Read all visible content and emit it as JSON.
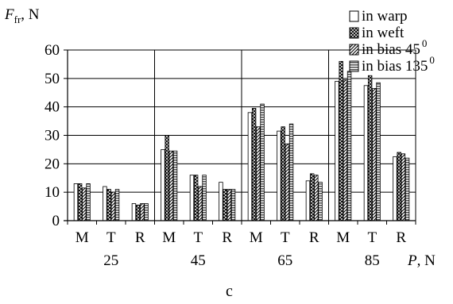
{
  "chart_data": {
    "type": "bar",
    "ylabel": "F",
    "ylabel_sub": "fr",
    "ylabel_unit": ", N",
    "xlabel": "P",
    "xlabel_unit": ", N",
    "caption": "c",
    "ylim": [
      0,
      60
    ],
    "yticks": [
      "0",
      "10",
      "20",
      "30",
      "40",
      "50",
      "60"
    ],
    "grid": true,
    "legend_position": "top-right",
    "categories": [
      "M",
      "T",
      "R",
      "M",
      "T",
      "R",
      "M",
      "T",
      "R",
      "M",
      "T",
      "R"
    ],
    "groups": [
      "25",
      "45",
      "65",
      "85"
    ],
    "series": [
      {
        "name": "in warp",
        "label_text": "in warp",
        "values": [
          13,
          12,
          6,
          25,
          16,
          13.5,
          38,
          31.5,
          14,
          49,
          47.5,
          22.5
        ],
        "pattern": "white"
      },
      {
        "name": "in weft",
        "label_text": "in weft",
        "values": [
          13,
          11,
          5.5,
          30,
          16,
          11,
          39.5,
          33,
          16.5,
          56,
          51,
          24
        ],
        "pattern": "grid"
      },
      {
        "name": "in bias 45°",
        "label_text": "in bias 45",
        "label_sup": "0",
        "values": [
          11.5,
          10,
          6,
          24.5,
          12,
          11,
          33,
          27,
          16,
          49.5,
          46.5,
          23.5
        ],
        "pattern": "diag"
      },
      {
        "name": "in bias 135°",
        "label_text": "in bias 135",
        "label_sup": "0",
        "values": [
          13,
          11,
          6,
          24.5,
          16,
          11,
          41,
          34,
          13.5,
          52.5,
          48.5,
          22
        ],
        "pattern": "horiz"
      }
    ]
  }
}
